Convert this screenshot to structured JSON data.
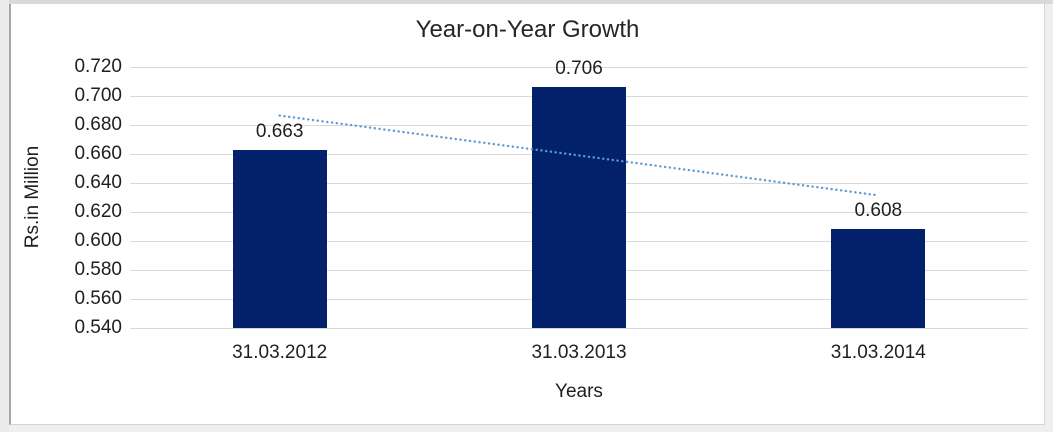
{
  "chart_data": {
    "type": "bar",
    "title": "Year-on-Year Growth",
    "xlabel": "Years",
    "ylabel": "Rs.in Million",
    "categories": [
      "31.03.2012",
      "31.03.2013",
      "31.03.2014"
    ],
    "values": [
      0.663,
      0.706,
      0.608
    ],
    "data_labels": [
      "0.663",
      "0.706",
      "0.608"
    ],
    "ylim": [
      0.54,
      0.72
    ],
    "ytick_step": 0.02,
    "yticks": [
      "0.720",
      "0.700",
      "0.680",
      "0.660",
      "0.640",
      "0.620",
      "0.600",
      "0.580",
      "0.560",
      "0.540"
    ],
    "grid": true,
    "legend": "none",
    "bar_color": "#03216b",
    "gridline_color": "#d9d9d9",
    "trendline": {
      "type": "linear",
      "style": "dotted",
      "color": "#5b9bd5",
      "endpoint_values": [
        0.6865,
        0.6315
      ]
    }
  }
}
